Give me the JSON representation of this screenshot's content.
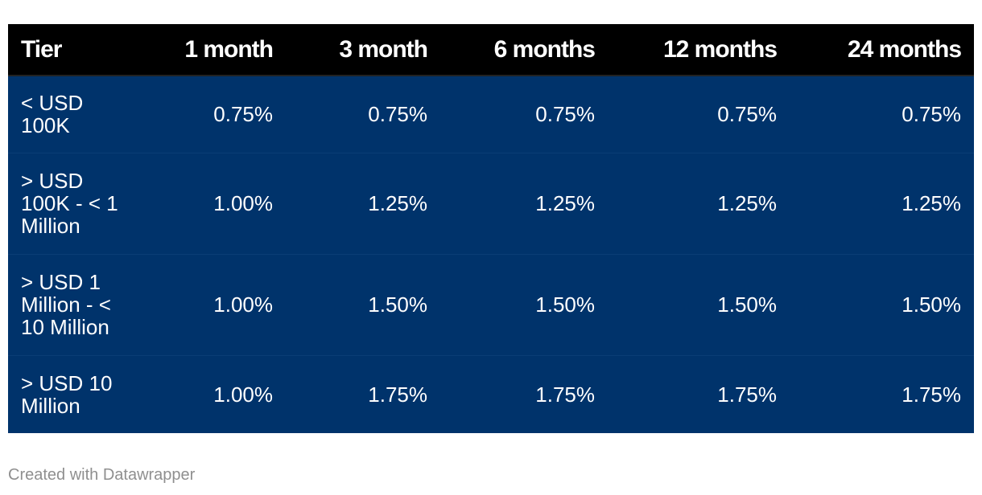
{
  "chart_data": {
    "type": "table",
    "columns": [
      "Tier",
      "1 month",
      "3 month",
      "6 months",
      "12 months",
      "24 months"
    ],
    "rows": [
      {
        "tier": "< USD 100K",
        "values": [
          "0.75%",
          "0.75%",
          "0.75%",
          "0.75%",
          "0.75%"
        ]
      },
      {
        "tier": "> USD 100K - < 1 Million",
        "values": [
          "1.00%",
          "1.25%",
          "1.25%",
          "1.25%",
          "1.25%"
        ]
      },
      {
        "tier": "> USD 1 Million - < 10 Million",
        "values": [
          "1.00%",
          "1.50%",
          "1.50%",
          "1.50%",
          "1.50%"
        ]
      },
      {
        "tier": "> USD 10 Million",
        "values": [
          "1.00%",
          "1.75%",
          "1.75%",
          "1.75%",
          "1.75%"
        ]
      }
    ],
    "header_background": "#000000",
    "body_background": "#00336b",
    "text_color": "#ffffff"
  },
  "footer": {
    "credit": "Created with Datawrapper"
  }
}
